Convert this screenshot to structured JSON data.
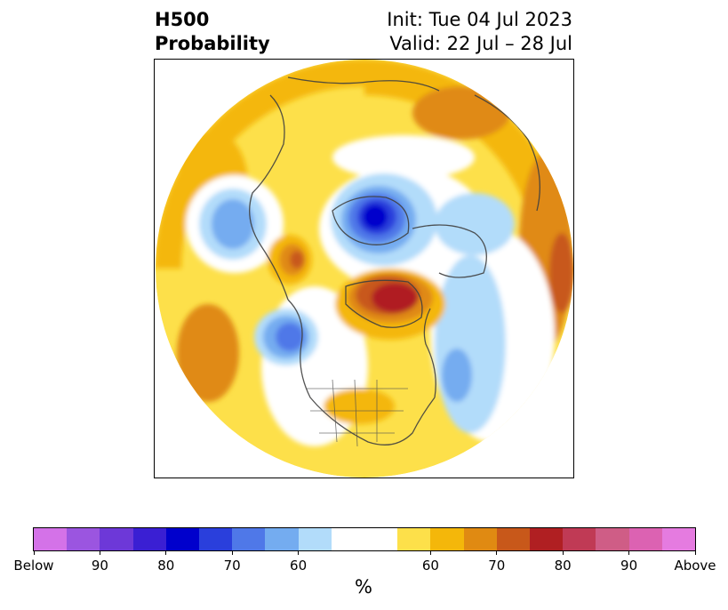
{
  "title": {
    "left_line1": "H500",
    "left_line2": "Probability",
    "right_line1": "Init: Tue 04 Jul 2023",
    "right_line2": "Valid: 22 Jul – 28 Jul"
  },
  "colorbar": {
    "unit": "%",
    "colors": [
      "#d472e8",
      "#9b55e0",
      "#6d38d8",
      "#3a1fd3",
      "#0000cc",
      "#2a3fdc",
      "#4f78e8",
      "#74acf0",
      "#b2dcfa",
      "#ffffff",
      "#ffffff",
      "#fde04a",
      "#f4b70a",
      "#e08a12",
      "#c8581a",
      "#b01f22",
      "#c03a55",
      "#cf5d86",
      "#dc62b2",
      "#e57be0"
    ],
    "ticks": [
      {
        "label": "Below",
        "index": 0
      },
      {
        "label": "90",
        "index": 2
      },
      {
        "label": "80",
        "index": 4
      },
      {
        "label": "70",
        "index": 6
      },
      {
        "label": "60",
        "index": 8
      },
      {
        "label": "60",
        "index": 12
      },
      {
        "label": "70",
        "index": 14
      },
      {
        "label": "80",
        "index": 16
      },
      {
        "label": "90",
        "index": 18
      },
      {
        "label": "Above",
        "index": 20
      }
    ]
  }
}
